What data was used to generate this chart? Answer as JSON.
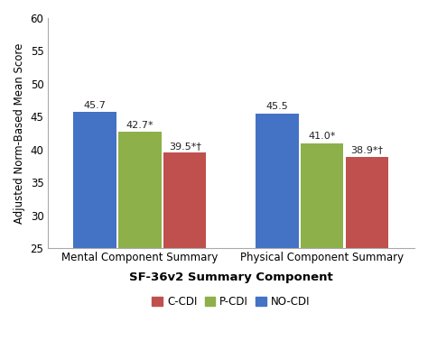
{
  "categories": [
    "Mental Component Summary",
    "Physical Component Summary"
  ],
  "series": {
    "NO-CDI": [
      45.7,
      45.5
    ],
    "P-CDI": [
      42.7,
      41.0
    ],
    "C-CDI": [
      39.5,
      38.9
    ]
  },
  "bar_labels": {
    "NO-CDI": [
      "45.7",
      "45.5"
    ],
    "P-CDI": [
      "42.7*",
      "41.0*"
    ],
    "C-CDI": [
      "39.5*†",
      "38.9*†"
    ]
  },
  "colors": {
    "NO-CDI": "#4472C4",
    "P-CDI": "#8DB04A",
    "C-CDI": "#C0504D"
  },
  "series_order": [
    "NO-CDI",
    "P-CDI",
    "C-CDI"
  ],
  "legend_order": [
    "C-CDI",
    "P-CDI",
    "NO-CDI"
  ],
  "ylabel": "Adjusted Norm-Based Mean Score",
  "xlabel": "SF-36v2 Summary Component",
  "ylim": [
    25,
    60
  ],
  "yticks": [
    25,
    30,
    35,
    40,
    45,
    50,
    55,
    60
  ],
  "bar_width": 0.18,
  "group_centers": [
    0.32,
    1.05
  ],
  "background_color": "#ffffff",
  "label_fontsize": 8.0,
  "axis_fontsize": 8.5,
  "legend_fontsize": 8.5,
  "xlabel_fontsize": 9.5,
  "ylabel_fontsize": 8.5
}
